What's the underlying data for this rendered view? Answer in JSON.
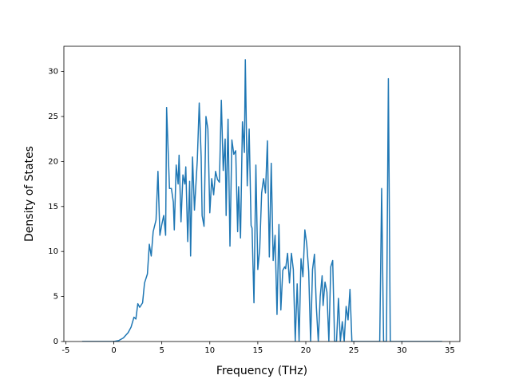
{
  "chart_data": {
    "type": "line",
    "x_label": "Frequency (THz)",
    "y_label": "Density of States",
    "color": "#1f77b4",
    "x": [
      -3.3,
      0,
      0.5,
      1.0,
      1.5,
      1.8,
      2.1,
      2.3,
      2.5,
      2.7,
      3.0,
      3.2,
      3.5,
      3.7,
      3.9,
      4.1,
      4.4,
      4.6,
      4.8,
      5.0,
      5.2,
      5.4,
      5.5,
      5.8,
      6.0,
      6.2,
      6.3,
      6.5,
      6.7,
      6.8,
      7.0,
      7.2,
      7.4,
      7.5,
      7.7,
      7.9,
      8.0,
      8.2,
      8.4,
      8.7,
      8.9,
      9.1,
      9.2,
      9.4,
      9.6,
      9.8,
      10.0,
      10.2,
      10.4,
      10.6,
      10.8,
      11.0,
      11.2,
      11.4,
      11.6,
      11.7,
      11.9,
      12.1,
      12.3,
      12.5,
      12.7,
      12.9,
      13.0,
      13.2,
      13.4,
      13.6,
      13.7,
      13.9,
      14.1,
      14.3,
      14.4,
      14.6,
      14.8,
      15.0,
      15.2,
      15.4,
      15.6,
      15.8,
      16.0,
      16.2,
      16.4,
      16.6,
      16.8,
      17.0,
      17.2,
      17.4,
      17.6,
      17.8,
      17.9,
      18.1,
      18.3,
      18.5,
      18.7,
      18.9,
      19.1,
      19.3,
      19.5,
      19.7,
      19.9,
      20.1,
      20.3,
      20.5,
      20.7,
      20.9,
      21.1,
      21.3,
      21.5,
      21.7,
      21.8,
      22.0,
      22.2,
      22.4,
      22.6,
      22.8,
      23.0,
      23.2,
      23.4,
      23.6,
      23.8,
      24.0,
      24.2,
      24.4,
      24.6,
      24.8,
      25.2,
      27.5,
      27.7,
      27.9,
      28.1,
      28.4,
      28.6,
      28.8,
      29.0,
      34.2
    ],
    "values": [
      0,
      0,
      0.1,
      0.4,
      1.0,
      1.6,
      2.7,
      2.5,
      4.2,
      3.8,
      4.3,
      6.5,
      7.5,
      10.8,
      9.5,
      12.2,
      13.5,
      18.9,
      11.8,
      13.0,
      14.0,
      11.8,
      26.0,
      17.0,
      17.0,
      15.5,
      12.4,
      19.6,
      17.5,
      20.7,
      13.3,
      18.5,
      17.5,
      19.4,
      11.1,
      17.8,
      9.5,
      20.5,
      14.6,
      20.2,
      26.5,
      20.5,
      14.0,
      12.8,
      25.0,
      23.6,
      14.3,
      18.1,
      16.3,
      18.9,
      18.0,
      17.7,
      26.8,
      19.0,
      22.5,
      14.0,
      24.7,
      10.6,
      22.4,
      20.8,
      21.2,
      12.2,
      17.2,
      11.5,
      24.4,
      21.0,
      31.3,
      17.3,
      23.6,
      12.9,
      12.6,
      4.3,
      19.6,
      8.0,
      10.3,
      16.5,
      18.1,
      16.5,
      22.3,
      9.4,
      19.8,
      9.0,
      11.8,
      3.0,
      13.0,
      3.5,
      7.9,
      8.3,
      8.1,
      9.8,
      6.5,
      9.8,
      8.0,
      0,
      6.4,
      0,
      9.2,
      7.2,
      12.4,
      10.8,
      7.8,
      0,
      8.0,
      9.7,
      3.8,
      0,
      5.0,
      7.3,
      4.0,
      6.6,
      5.5,
      0,
      8.3,
      9.0,
      0,
      0,
      4.8,
      0,
      2.2,
      0,
      3.9,
      2.4,
      5.8,
      0,
      0,
      0,
      0,
      17.0,
      0,
      0,
      29.2,
      0,
      0,
      0
    ],
    "xlim": [
      -5.2,
      36.05
    ],
    "ylim": [
      0,
      32.8
    ],
    "xticks": [
      -5,
      0,
      5,
      10,
      15,
      20,
      25,
      30,
      35
    ],
    "yticks": [
      0,
      5,
      10,
      15,
      20,
      25,
      30
    ]
  }
}
